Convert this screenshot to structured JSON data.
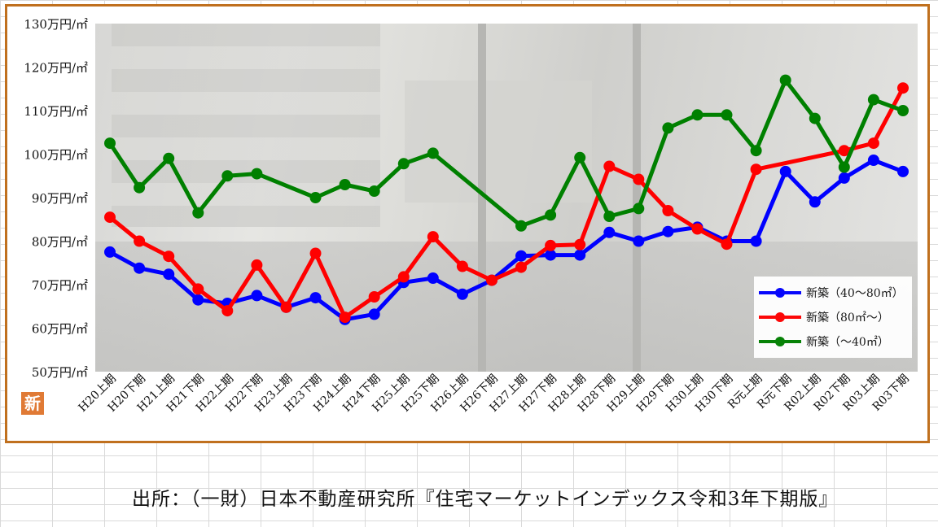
{
  "chart_data": {
    "type": "line",
    "ylim": [
      50,
      130
    ],
    "yticks": [
      "50万円/㎡",
      "60万円/㎡",
      "70万円/㎡",
      "80万円/㎡",
      "90万円/㎡",
      "100万円/㎡",
      "110万円/㎡",
      "120万円/㎡",
      "130万円/㎡"
    ],
    "categories": [
      "H20上期",
      "H20下期",
      "H21上期",
      "H21下期",
      "H22上期",
      "H22下期",
      "H23上期",
      "H23下期",
      "H24上期",
      "H24下期",
      "H25上期",
      "H25下期",
      "H26上期",
      "H26下期",
      "H27上期",
      "H27下期",
      "H28上期",
      "H28下期",
      "H29上期",
      "H29下期",
      "H30上期",
      "H30下期",
      "R元上期",
      "R元下期",
      "R02上期",
      "R02下期",
      "R03上期",
      "R03下期"
    ],
    "series": [
      {
        "name": "新築（40～80㎡）",
        "color": "#0000ff",
        "values": [
          77.5,
          73.8,
          72.4,
          66.5,
          65.7,
          67.5,
          64.8,
          67,
          62,
          63.2,
          70.5,
          71.5,
          67.8,
          71,
          76.6,
          76.8,
          76.8,
          82,
          80,
          82.2,
          83.2,
          80,
          80,
          96,
          89,
          94.5,
          98.6,
          96
        ]
      },
      {
        "name": "新築（80㎡～）",
        "color": "#ff0000",
        "values": [
          85.5,
          80,
          76.5,
          69,
          64,
          74.5,
          64.8,
          77.2,
          62.5,
          67.2,
          71.8,
          81,
          74.2,
          71,
          74,
          79,
          79.2,
          97.2,
          94.2,
          87,
          82.8,
          79.3,
          96.5,
          null,
          null,
          100.8,
          102.5,
          115.2
        ]
      },
      {
        "name": "新築（～40㎡）",
        "color": "#008000",
        "values": [
          102.5,
          92.3,
          99,
          86.5,
          95,
          95.5,
          null,
          90,
          93,
          91.5,
          97.8,
          100.2,
          null,
          null,
          83.5,
          86,
          99.2,
          85.7,
          87.5,
          106,
          109,
          109,
          100.8,
          117,
          108.2,
          97,
          112.5,
          110
        ]
      }
    ]
  },
  "source_text": "出所：（一財）日本不動産研究所『住宅マーケットインデックス令和3年下期版』",
  "badge_text": "新"
}
